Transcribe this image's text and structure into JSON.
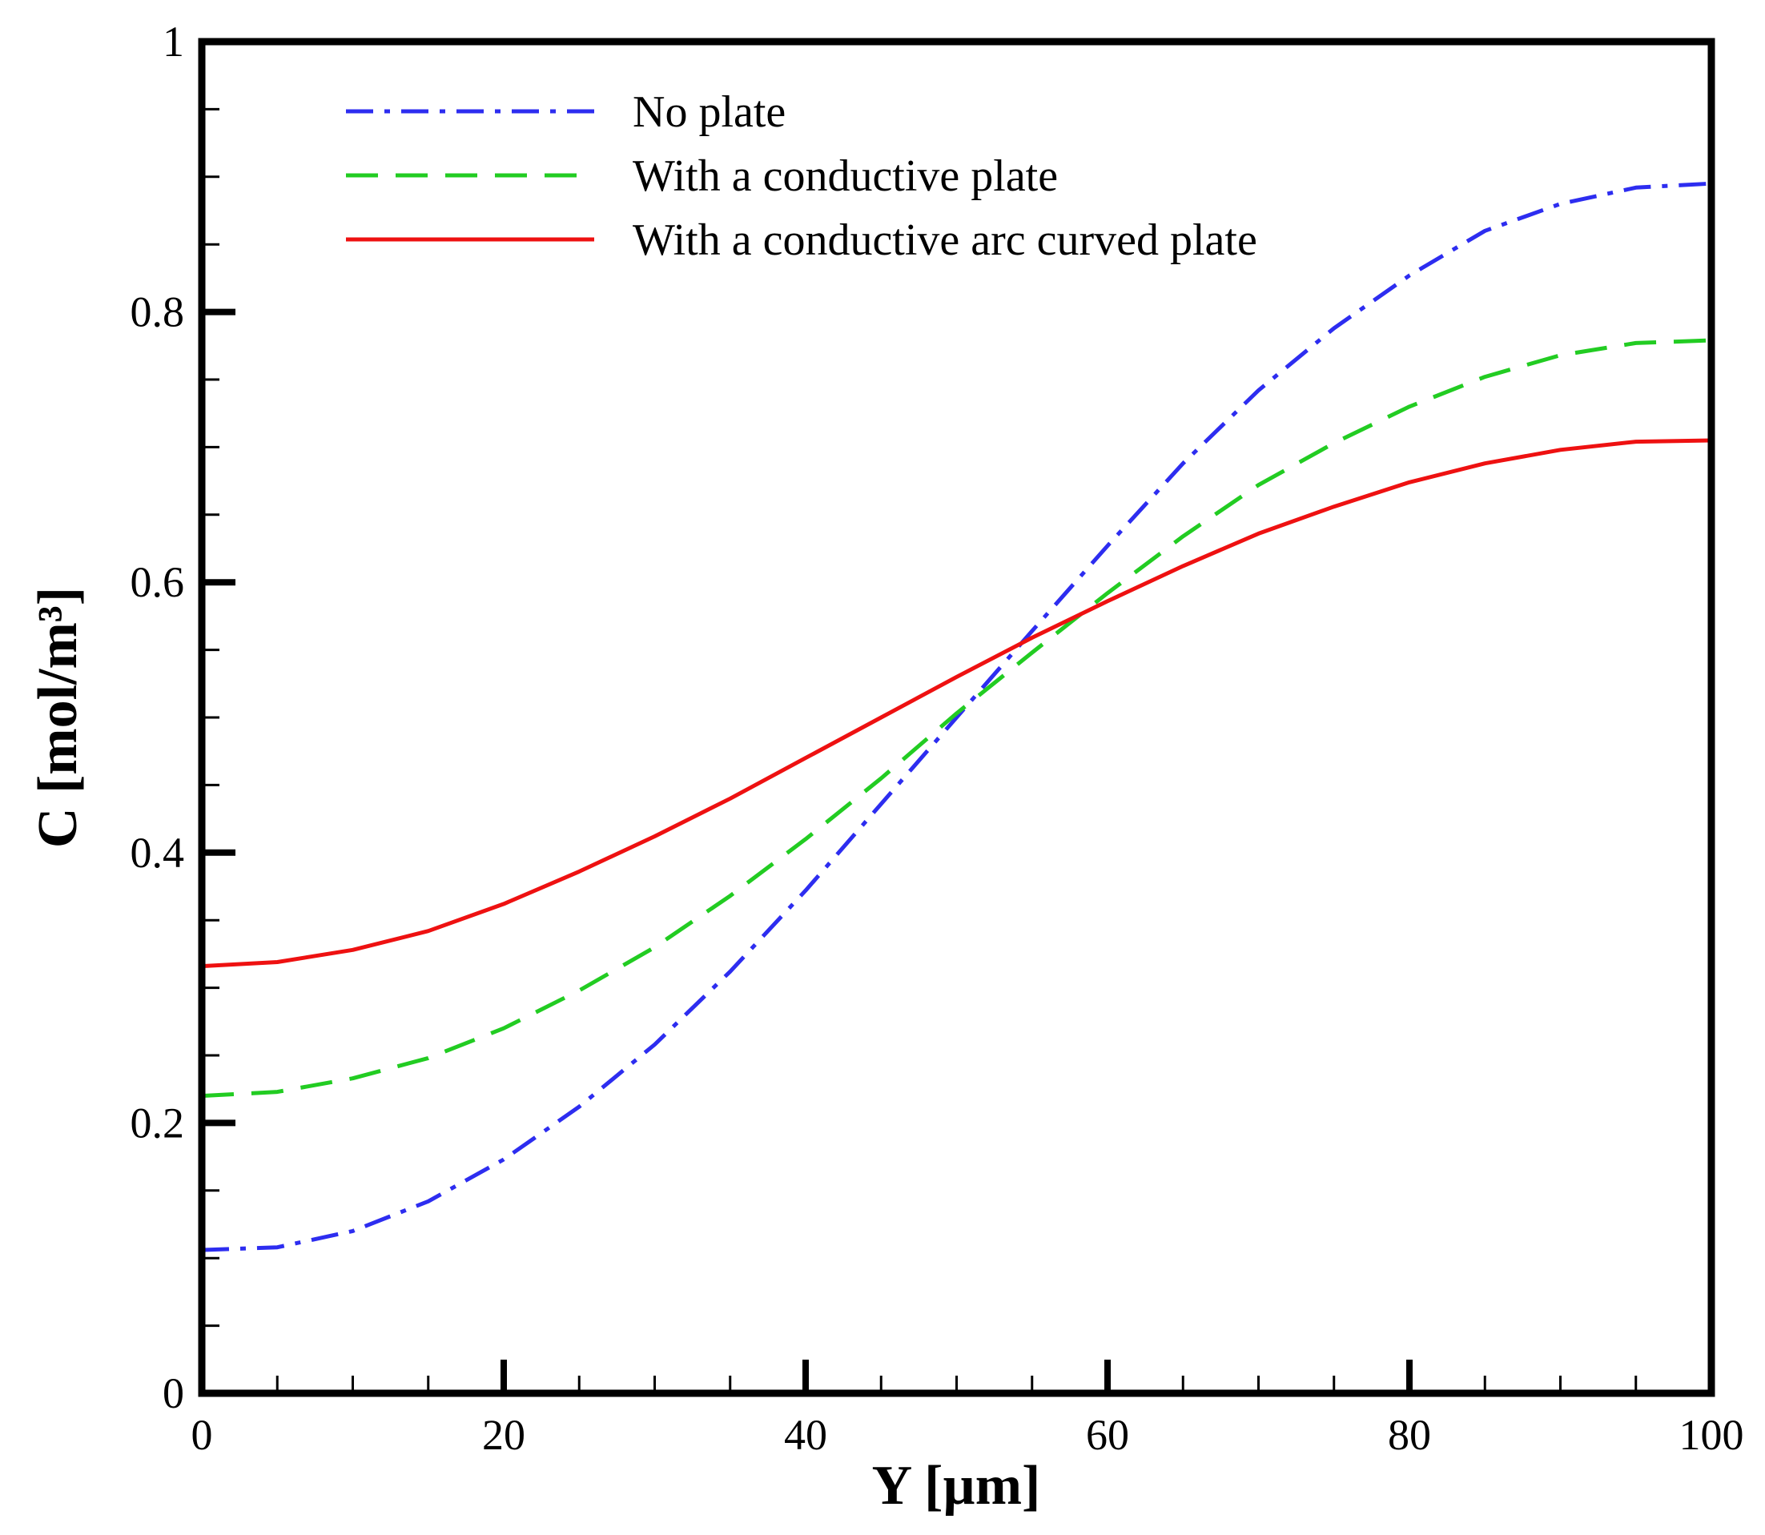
{
  "chart_data": {
    "type": "line",
    "title": "",
    "xlabel": "Y [µm]",
    "ylabel": "C [mol/m³]",
    "xlim": [
      0,
      100
    ],
    "ylim": [
      0,
      1
    ],
    "xticks": [
      0,
      20,
      40,
      60,
      80,
      100
    ],
    "xtick_labels": [
      "0",
      "20",
      "40",
      "60",
      "80",
      "100"
    ],
    "yticks": [
      0,
      0.2,
      0.4,
      0.6,
      0.8,
      1
    ],
    "ytick_labels": [
      "0",
      "0.2",
      "0.4",
      "0.6",
      "0.8",
      "1"
    ],
    "x_minor_step": 5,
    "y_minor_step": 0.05,
    "grid": false,
    "legend_position": "top-left",
    "series": [
      {
        "name": "No plate",
        "color": "#2d2df0",
        "style": "dash-dot",
        "x": [
          0,
          5,
          10,
          15,
          20,
          25,
          30,
          35,
          40,
          45,
          50,
          55,
          60,
          65,
          70,
          75,
          80,
          85,
          90,
          95,
          100
        ],
        "y": [
          0.106,
          0.108,
          0.12,
          0.142,
          0.173,
          0.212,
          0.258,
          0.312,
          0.372,
          0.436,
          0.5,
          0.564,
          0.627,
          0.688,
          0.742,
          0.788,
          0.827,
          0.86,
          0.88,
          0.892,
          0.895
        ]
      },
      {
        "name": "With a conductive plate",
        "color": "#22cc22",
        "style": "dashed",
        "x": [
          0,
          5,
          10,
          15,
          20,
          25,
          30,
          35,
          40,
          45,
          50,
          55,
          60,
          65,
          70,
          75,
          80,
          85,
          90,
          95,
          100
        ],
        "y": [
          0.22,
          0.223,
          0.233,
          0.248,
          0.27,
          0.298,
          0.33,
          0.368,
          0.41,
          0.455,
          0.503,
          0.548,
          0.592,
          0.634,
          0.672,
          0.703,
          0.73,
          0.752,
          0.768,
          0.777,
          0.779
        ]
      },
      {
        "name": "With a conductive arc curved plate",
        "color": "#ee1111",
        "style": "solid",
        "x": [
          0,
          5,
          10,
          15,
          20,
          25,
          30,
          35,
          40,
          45,
          50,
          55,
          60,
          65,
          70,
          75,
          80,
          85,
          90,
          95,
          100
        ],
        "y": [
          0.316,
          0.319,
          0.328,
          0.342,
          0.362,
          0.386,
          0.412,
          0.44,
          0.47,
          0.5,
          0.53,
          0.559,
          0.586,
          0.612,
          0.636,
          0.656,
          0.674,
          0.688,
          0.698,
          0.704,
          0.705
        ]
      }
    ]
  }
}
